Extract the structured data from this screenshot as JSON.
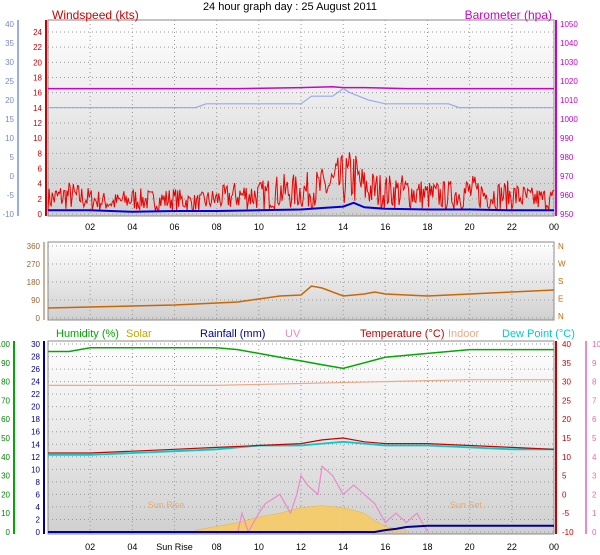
{
  "title": "24 hour graph day : 25 August 2011",
  "x_ticks": [
    "02",
    "04",
    "06",
    "08",
    "10",
    "12",
    "14",
    "16",
    "18",
    "20",
    "22",
    "00"
  ],
  "bottom_x_ticks": [
    "02",
    "04",
    "Sun Rise",
    "08",
    "10",
    "12",
    "14",
    "16",
    "18",
    "20",
    "22",
    "00"
  ],
  "colors": {
    "wind": "#ee0000",
    "gust": "#0000dd",
    "baro": "#cc00cc",
    "wind_blue": "#99aaee",
    "dir": "#cc6600",
    "humidity": "#00aa00",
    "solar": "#bbaa00",
    "rainfall": "#000099",
    "uv": "#ee88cc",
    "temperature": "#cc0000",
    "indoor": "#eeaa88",
    "dewpoint": "#00cccc",
    "grid_bg_top": "#ffffff",
    "grid_bg_bottom": "#d0d0d0"
  },
  "chart_data": [
    {
      "type": "line",
      "panel": "wind_baro",
      "labels": {
        "left": "Windspeed (kts)",
        "right": "Barometer (hpa)"
      },
      "left_ticks": [
        "24",
        "22",
        "20",
        "18",
        "16",
        "14",
        "12",
        "10",
        "8",
        "6",
        "4",
        "2",
        "0"
      ],
      "left_outer_ticks": [
        "40",
        "35",
        "30",
        "25",
        "20",
        "15",
        "10",
        "5",
        "0",
        "-5",
        "-10"
      ],
      "right_ticks": [
        "1050",
        "1040",
        "1030",
        "1020",
        "1010",
        "1000",
        "990",
        "980",
        "970",
        "960",
        "950"
      ],
      "ylim_wind": [
        0,
        25
      ],
      "ylim_baro": [
        950,
        1050
      ],
      "ylim_outer": [
        -10,
        40
      ],
      "series": [
        {
          "name": "Barometer (hpa)",
          "axis": "baro",
          "x": [
            0,
            3,
            6,
            9,
            12,
            13.5,
            14,
            15,
            17,
            18,
            24
          ],
          "y": [
            1016,
            1016,
            1016,
            1016,
            1016.5,
            1017,
            1016.5,
            1016.5,
            1016,
            1016,
            1016
          ]
        },
        {
          "name": "",
          "axis": "outer",
          "x": [
            0,
            7,
            7.5,
            10,
            12,
            12.5,
            13.5,
            14,
            14.3,
            15.2,
            16,
            19,
            19.5,
            24
          ],
          "y": [
            18,
            18,
            19,
            19,
            19,
            21,
            21,
            23,
            22,
            20,
            19,
            19,
            18,
            18
          ]
        },
        {
          "name": "Windspeed (kts)",
          "axis": "wind",
          "x": [
            0,
            1,
            2,
            3,
            4,
            5,
            6,
            7,
            8,
            9,
            10,
            11,
            12,
            13,
            13.5,
            14,
            14.5,
            15,
            16,
            17,
            18,
            19,
            20,
            21,
            22,
            23,
            24
          ],
          "y": [
            2,
            2.5,
            2,
            1.5,
            2,
            1.8,
            2,
            1.5,
            2,
            2.5,
            2.5,
            3,
            3,
            3.5,
            4,
            4.5,
            5,
            3.5,
            3,
            3,
            2.5,
            2.5,
            3,
            2.5,
            2.5,
            2,
            2
          ]
        },
        {
          "name": "",
          "axis": "wind",
          "x": [
            0,
            2,
            4,
            6,
            8,
            10,
            12,
            13,
            14,
            14.5,
            15,
            16,
            18,
            20,
            22,
            24
          ],
          "y": [
            0.5,
            0.5,
            0.3,
            0.4,
            0.4,
            0.5,
            0.6,
            0.8,
            1,
            1.5,
            0.9,
            0.7,
            0.6,
            0.6,
            0.5,
            0.5
          ]
        }
      ]
    },
    {
      "type": "line",
      "panel": "wind_direction",
      "left_ticks": [
        "360",
        "270",
        "180",
        "90",
        "0"
      ],
      "right_ticks": [
        "N",
        "W",
        "S",
        "E",
        "N"
      ],
      "ylim": [
        0,
        360
      ],
      "series": [
        {
          "name": "",
          "x": [
            0,
            2,
            4,
            6,
            7,
            8,
            9,
            10,
            11,
            12,
            12.5,
            13,
            14,
            15,
            15.5,
            16,
            18,
            20,
            22,
            24
          ],
          "y": [
            50,
            55,
            60,
            65,
            70,
            75,
            80,
            95,
            110,
            115,
            160,
            150,
            110,
            120,
            130,
            120,
            110,
            120,
            130,
            140
          ]
        }
      ]
    },
    {
      "type": "line",
      "panel": "temp_hum",
      "legend": [
        "Humidity (%)",
        "Solar",
        "Rainfall (mm)",
        "UV",
        "Temperature (°C)",
        "Indoor",
        "Dew Point (°C)"
      ],
      "left_outer_ticks": [
        "100",
        "90",
        "80",
        "70",
        "60",
        "50",
        "40",
        "30",
        "20",
        "10",
        "0"
      ],
      "left_inner_ticks": [
        "30",
        "28",
        "26",
        "24",
        "22",
        "20",
        "18",
        "16",
        "14",
        "12",
        "10",
        "8",
        "6",
        "4",
        "2",
        "0"
      ],
      "right_inner_ticks": [
        "40",
        "35",
        "30",
        "25",
        "20",
        "15",
        "10",
        "5",
        "0",
        "-5",
        "-10"
      ],
      "right_outer_ticks": [
        "10",
        "9",
        "8",
        "7",
        "6",
        "5",
        "4",
        "3",
        "2",
        "1",
        "0"
      ],
      "annotations": [
        "Sun Rise",
        "Sun Set"
      ],
      "ylim_humidity": [
        0,
        100
      ],
      "ylim_temp": [
        -10,
        40
      ],
      "ylim_rain": [
        0,
        30
      ],
      "ylim_uv": [
        0,
        10
      ],
      "series": [
        {
          "name": "Humidity (%)",
          "axis": "humidity",
          "x": [
            0,
            1,
            2,
            3,
            4,
            5,
            6,
            7,
            8,
            9,
            10,
            11,
            12,
            13,
            14,
            15,
            16,
            18,
            20,
            22,
            24
          ],
          "y": [
            96,
            96,
            98,
            98,
            98,
            98,
            98,
            98,
            98,
            97,
            95,
            93,
            91,
            89,
            87,
            90,
            93,
            95,
            97,
            97,
            97
          ]
        },
        {
          "name": "Indoor",
          "axis": "temp",
          "x": [
            0,
            4,
            8,
            12,
            16,
            20,
            24
          ],
          "y": [
            29,
            29,
            29,
            29.5,
            30,
            30.5,
            30.5
          ]
        },
        {
          "name": "Temperature (°C)",
          "axis": "temp",
          "x": [
            0,
            2,
            4,
            6,
            8,
            10,
            12,
            13,
            14,
            15,
            16,
            18,
            20,
            22,
            24
          ],
          "y": [
            11,
            11,
            11.5,
            12,
            12.5,
            13,
            13.5,
            14.5,
            15,
            14,
            13.5,
            13.5,
            13,
            12.5,
            12
          ]
        },
        {
          "name": "Dew Point (°C)",
          "axis": "temp",
          "x": [
            0,
            2,
            4,
            6,
            8,
            10,
            12,
            13,
            14,
            15,
            16,
            18,
            20,
            22,
            24
          ],
          "y": [
            10.5,
            10.5,
            11,
            11.5,
            12,
            13,
            13,
            13.5,
            14,
            13.5,
            13,
            13,
            12.5,
            12,
            12
          ]
        },
        {
          "name": "Rainfall (mm)",
          "axis": "rain",
          "x": [
            0,
            15.5,
            16,
            16.5,
            17,
            18,
            20,
            22,
            24
          ],
          "y": [
            0,
            0,
            0.3,
            0.5,
            0.8,
            1,
            1,
            1,
            1
          ]
        },
        {
          "name": "UV",
          "axis": "uv",
          "x": [
            9,
            9.2,
            9.5,
            10,
            10.3,
            11,
            11.5,
            11.8,
            12,
            12.3,
            12.8,
            13,
            13.5,
            14,
            14.5,
            15,
            15.5,
            16,
            16.5,
            17,
            17.5,
            18
          ],
          "y": [
            0,
            1,
            0,
            1,
            1.5,
            2,
            1,
            2,
            3,
            2.5,
            2,
            3.5,
            3,
            2,
            2.5,
            2,
            1.5,
            0.5,
            1,
            0.5,
            1,
            0
          ]
        },
        {
          "name": "Solar",
          "axis": "uv",
          "x": [
            7,
            8,
            9,
            10,
            11,
            12,
            13,
            14,
            15,
            15.5,
            16,
            17
          ],
          "y": [
            0.1,
            0.3,
            0.5,
            0.8,
            1,
            1.3,
            1.4,
            1.3,
            1,
            0.6,
            0.3,
            0.1
          ]
        }
      ]
    }
  ]
}
